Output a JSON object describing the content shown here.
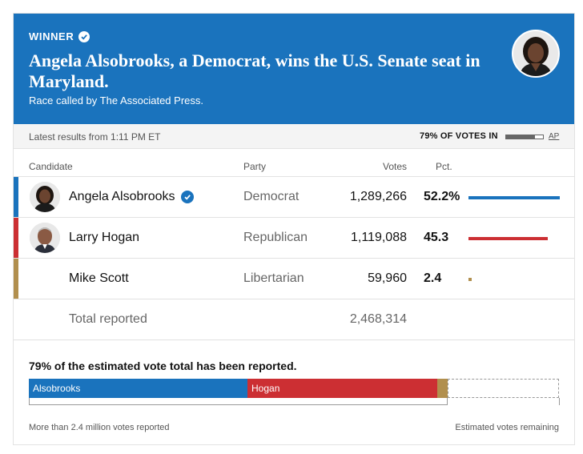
{
  "banner": {
    "winner_label": "WINNER",
    "headline": "Angela Alsobrooks, a Democrat, wins the U.S. Senate seat in Maryland.",
    "subline": "Race called by The Associated Press.",
    "background_color": "#1a73bd"
  },
  "status": {
    "latest": "Latest results from 1:11 PM ET",
    "votes_in": "79% OF VOTES IN",
    "votes_in_fraction": 0.79,
    "source_link": "AP"
  },
  "table": {
    "headers": {
      "candidate": "Candidate",
      "party": "Party",
      "votes": "Votes",
      "pct": "Pct."
    },
    "rows": [
      {
        "name": "Angela Alsobrooks",
        "party": "Democrat",
        "votes": "1,289,266",
        "pct": "52.2%",
        "pct_value": 52.2,
        "color": "#1a73bd",
        "winner": true,
        "avatar": "portrait-alsobrooks"
      },
      {
        "name": "Larry Hogan",
        "party": "Republican",
        "votes": "1,119,088",
        "pct": "45.3",
        "pct_value": 45.3,
        "color": "#cc2f33",
        "winner": false,
        "avatar": "portrait-hogan"
      },
      {
        "name": "Mike Scott",
        "party": "Libertarian",
        "votes": "59,960",
        "pct": "2.4",
        "pct_value": 2.4,
        "color": "#b18f4e",
        "winner": false,
        "avatar": ""
      }
    ],
    "total": {
      "label": "Total reported",
      "votes": "2,468,314"
    }
  },
  "estimate": {
    "title": "79% of the estimated vote total has been reported.",
    "segments": [
      {
        "label": "Alsobrooks",
        "share": 0.412,
        "color": "#1a73bd"
      },
      {
        "label": "Hogan",
        "share": 0.358,
        "color": "#cc2f33"
      },
      {
        "label": "",
        "share": 0.019,
        "color": "#b18f4e"
      }
    ],
    "reported_note": "More than 2.4 million votes reported",
    "remaining_note": "Estimated votes remaining"
  }
}
